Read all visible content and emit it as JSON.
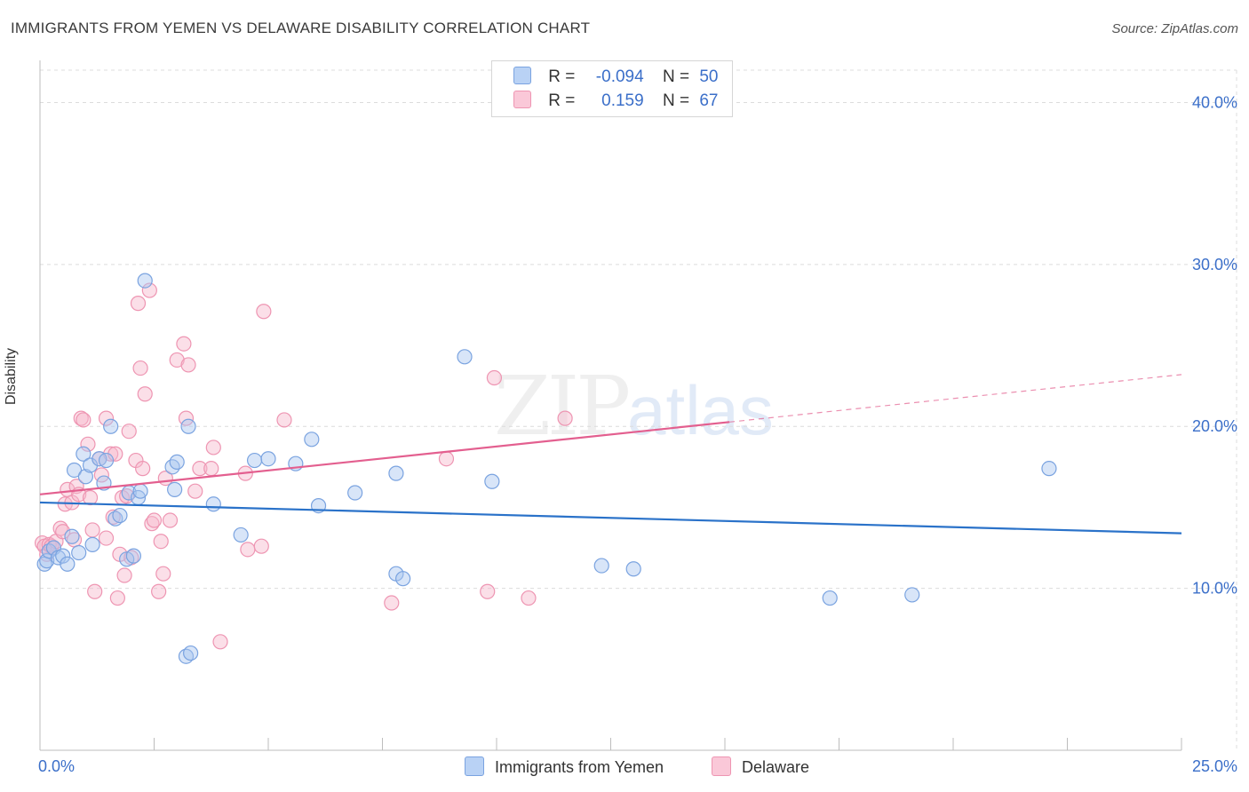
{
  "title": "IMMIGRANTS FROM YEMEN VS DELAWARE DISABILITY CORRELATION CHART",
  "source": "Source: ZipAtlas.com",
  "watermark": {
    "zip": "ZIP",
    "atlas": "atlas"
  },
  "legend": {
    "rows": [
      {
        "name": "Immigrants from Yemen",
        "r_label": "R =",
        "r_value": "-0.094",
        "n_label": "N =",
        "n_value": "50"
      },
      {
        "name": "Delaware",
        "r_label": "R =",
        "r_value": "0.159",
        "n_label": "N =",
        "n_value": "67"
      }
    ]
  },
  "colors": {
    "blue_fill": "#a9c6f0",
    "blue_stroke": "#7aa3e0",
    "blue_line": "#2a72c9",
    "pink_fill": "#f7b9cd",
    "pink_stroke": "#ee95b2",
    "pink_line": "#e35f8f",
    "axis_text": "#3b6fc9",
    "grid": "#dcdcdc"
  },
  "chart_data": {
    "type": "scatter",
    "title": "IMMIGRANTS FROM YEMEN VS DELAWARE DISABILITY CORRELATION CHART",
    "xlabel": "",
    "ylabel": "Disability",
    "xlim": [
      0,
      25
    ],
    "ylim": [
      0,
      42
    ],
    "x_tick_labels": [
      {
        "x": 0,
        "label": "0.0%"
      },
      {
        "x": 25,
        "label": "25.0%"
      }
    ],
    "y_ticks": [
      {
        "y": 10,
        "label": "10.0%"
      },
      {
        "y": 20,
        "label": "20.0%"
      },
      {
        "y": 30,
        "label": "30.0%"
      },
      {
        "y": 40,
        "label": "40.0%"
      }
    ],
    "series": [
      {
        "name": "Immigrants from Yemen",
        "color_key": "blue",
        "trend": {
          "x0": 0,
          "y0": 15.3,
          "x1": 25,
          "y1": 13.4,
          "dashed_from": null
        },
        "points": [
          [
            0.1,
            11.5
          ],
          [
            0.15,
            11.7
          ],
          [
            0.2,
            12.3
          ],
          [
            0.3,
            12.5
          ],
          [
            0.4,
            11.9
          ],
          [
            0.5,
            12.0
          ],
          [
            0.6,
            11.5
          ],
          [
            0.7,
            13.2
          ],
          [
            0.75,
            17.3
          ],
          [
            0.85,
            12.2
          ],
          [
            0.95,
            18.3
          ],
          [
            1.0,
            16.9
          ],
          [
            1.1,
            17.6
          ],
          [
            1.15,
            12.7
          ],
          [
            1.3,
            18.0
          ],
          [
            1.4,
            16.5
          ],
          [
            1.45,
            17.9
          ],
          [
            1.55,
            20.0
          ],
          [
            1.65,
            14.3
          ],
          [
            1.75,
            14.5
          ],
          [
            1.9,
            11.8
          ],
          [
            1.95,
            15.9
          ],
          [
            2.05,
            12.0
          ],
          [
            2.15,
            15.6
          ],
          [
            2.2,
            16.0
          ],
          [
            2.3,
            29.0
          ],
          [
            2.9,
            17.5
          ],
          [
            2.95,
            16.1
          ],
          [
            3.0,
            17.8
          ],
          [
            3.25,
            20.0
          ],
          [
            3.2,
            5.8
          ],
          [
            3.3,
            6.0
          ],
          [
            3.8,
            15.2
          ],
          [
            4.4,
            13.3
          ],
          [
            4.7,
            17.9
          ],
          [
            5.0,
            18.0
          ],
          [
            5.6,
            17.7
          ],
          [
            5.95,
            19.2
          ],
          [
            6.1,
            15.1
          ],
          [
            6.9,
            15.9
          ],
          [
            7.8,
            10.9
          ],
          [
            7.95,
            10.6
          ],
          [
            7.8,
            17.1
          ],
          [
            9.3,
            24.3
          ],
          [
            9.9,
            16.6
          ],
          [
            12.3,
            11.4
          ],
          [
            13.0,
            11.2
          ],
          [
            17.3,
            9.4
          ],
          [
            19.1,
            9.6
          ],
          [
            22.1,
            17.4
          ]
        ]
      },
      {
        "name": "Delaware",
        "color_key": "pink",
        "trend": {
          "x0": 0,
          "y0": 15.8,
          "x1": 25,
          "y1": 23.2,
          "dashed_from": 15.1
        },
        "points": [
          [
            0.05,
            12.8
          ],
          [
            0.1,
            12.6
          ],
          [
            0.15,
            12.1
          ],
          [
            0.2,
            12.7
          ],
          [
            0.25,
            12.6
          ],
          [
            0.35,
            12.9
          ],
          [
            0.45,
            13.7
          ],
          [
            0.5,
            13.5
          ],
          [
            0.55,
            15.2
          ],
          [
            0.6,
            16.1
          ],
          [
            0.7,
            15.3
          ],
          [
            0.75,
            13.0
          ],
          [
            0.8,
            16.3
          ],
          [
            0.85,
            15.8
          ],
          [
            0.9,
            20.5
          ],
          [
            0.95,
            20.4
          ],
          [
            1.05,
            18.9
          ],
          [
            1.1,
            15.6
          ],
          [
            1.15,
            13.6
          ],
          [
            1.2,
            9.8
          ],
          [
            1.3,
            18.0
          ],
          [
            1.35,
            17.0
          ],
          [
            1.45,
            13.1
          ],
          [
            1.45,
            20.5
          ],
          [
            1.55,
            18.3
          ],
          [
            1.6,
            14.4
          ],
          [
            1.65,
            18.3
          ],
          [
            1.7,
            9.4
          ],
          [
            1.75,
            12.1
          ],
          [
            1.8,
            15.6
          ],
          [
            1.85,
            10.8
          ],
          [
            1.9,
            15.7
          ],
          [
            1.95,
            19.7
          ],
          [
            2.0,
            11.9
          ],
          [
            2.1,
            17.9
          ],
          [
            2.15,
            27.6
          ],
          [
            2.2,
            23.6
          ],
          [
            2.25,
            17.4
          ],
          [
            2.3,
            22.0
          ],
          [
            2.4,
            28.4
          ],
          [
            2.45,
            14.0
          ],
          [
            2.5,
            14.2
          ],
          [
            2.6,
            9.8
          ],
          [
            2.65,
            12.9
          ],
          [
            2.7,
            10.9
          ],
          [
            2.75,
            16.8
          ],
          [
            2.85,
            14.2
          ],
          [
            3.0,
            24.1
          ],
          [
            3.15,
            25.1
          ],
          [
            3.2,
            20.5
          ],
          [
            3.25,
            23.8
          ],
          [
            3.4,
            16.0
          ],
          [
            3.5,
            17.4
          ],
          [
            3.75,
            17.4
          ],
          [
            3.8,
            18.7
          ],
          [
            3.95,
            6.7
          ],
          [
            4.5,
            17.1
          ],
          [
            4.55,
            12.4
          ],
          [
            4.85,
            12.6
          ],
          [
            4.9,
            27.1
          ],
          [
            5.35,
            20.4
          ],
          [
            7.7,
            9.1
          ],
          [
            8.9,
            18.0
          ],
          [
            9.8,
            9.8
          ],
          [
            9.95,
            23.0
          ],
          [
            10.7,
            9.4
          ],
          [
            11.5,
            20.5
          ]
        ]
      }
    ]
  }
}
